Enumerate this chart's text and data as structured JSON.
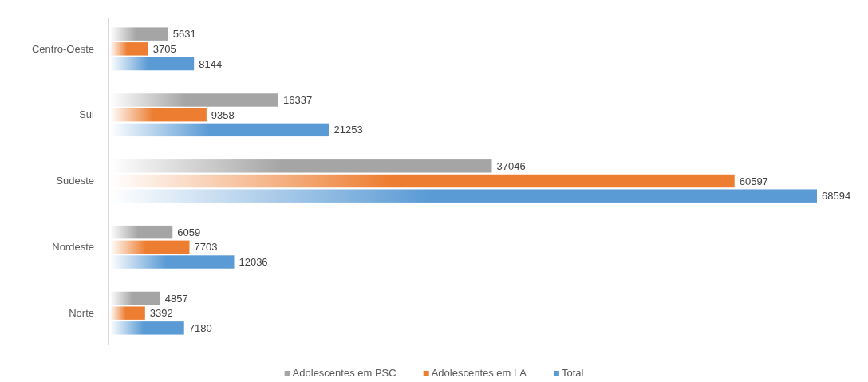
{
  "chart_data": {
    "type": "bar",
    "orientation": "horizontal",
    "categories": [
      "Centro-Oeste",
      "Sul",
      "Sudeste",
      "Nordeste",
      "Norte"
    ],
    "series": [
      {
        "name": "Adolescentes em PSC",
        "color": "#a5a5a5",
        "values": [
          5631,
          16337,
          37046,
          6059,
          4857
        ]
      },
      {
        "name": "Adolescentes em LA",
        "color": "#ed7d31",
        "values": [
          3705,
          9358,
          60597,
          7703,
          3392
        ]
      },
      {
        "name": "Total",
        "color": "#5b9bd5",
        "values": [
          8144,
          21253,
          68594,
          12036,
          7180
        ]
      }
    ],
    "data_labels": true,
    "legend": "bottom",
    "tick_labels": "y"
  }
}
